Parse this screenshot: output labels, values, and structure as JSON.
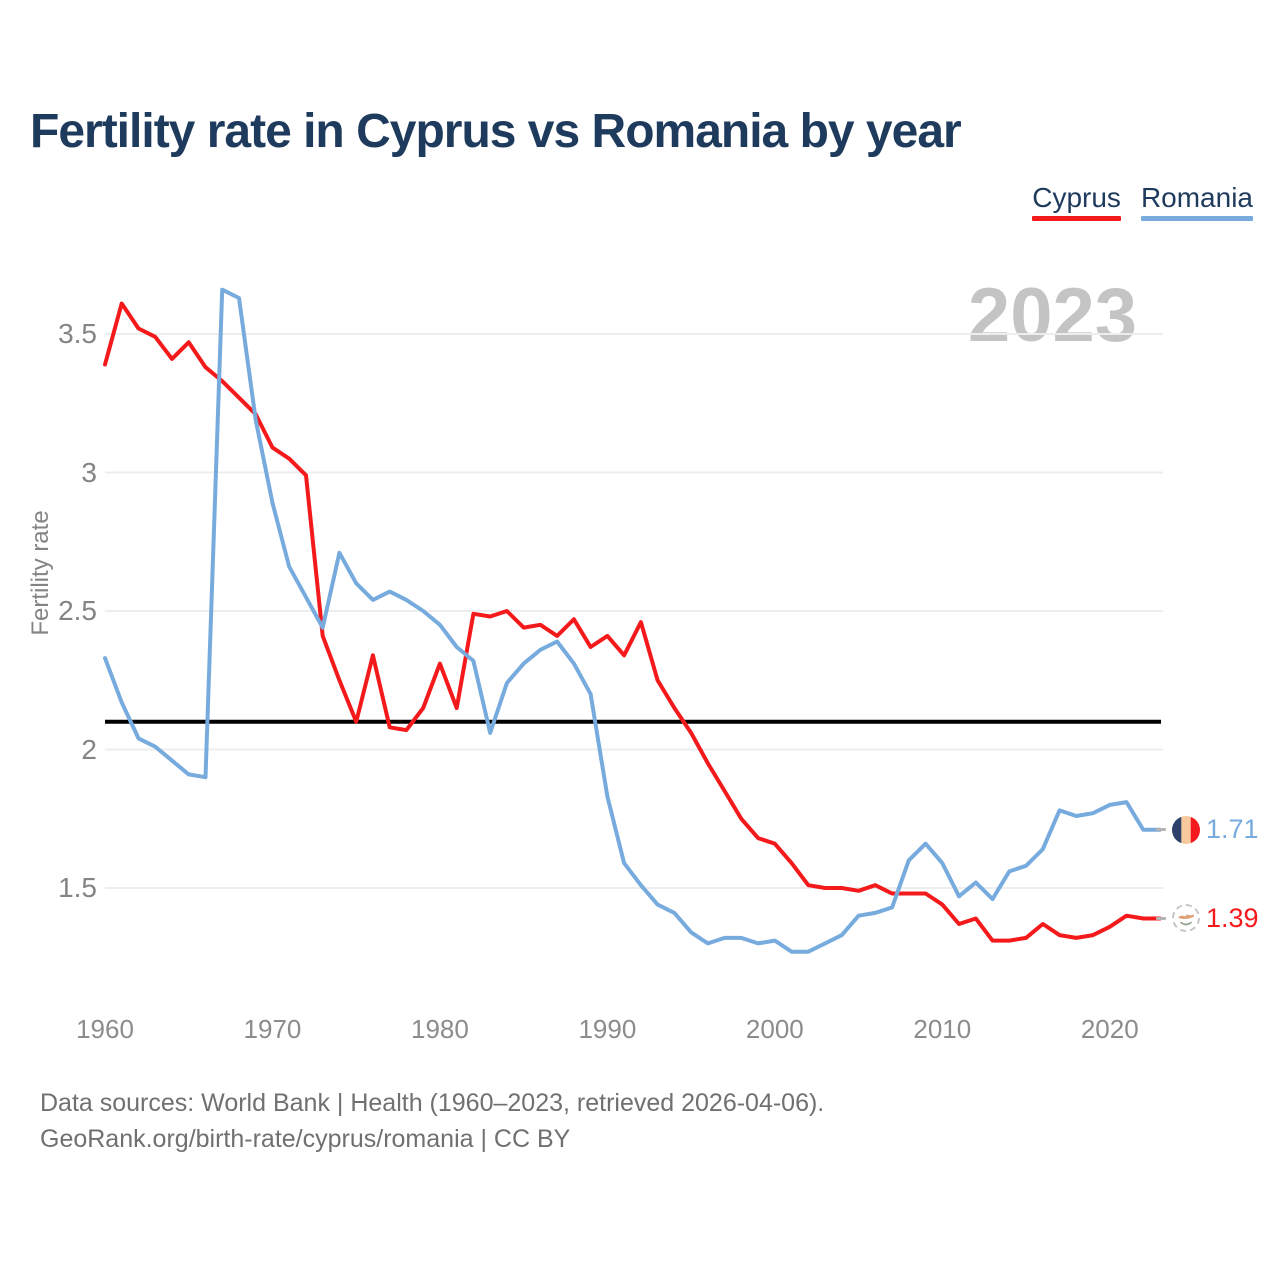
{
  "header": {
    "title": "Fertility rate in Cyprus vs Romania by year"
  },
  "legend": {
    "position": "top-right",
    "items": [
      {
        "label": "Cyprus",
        "color": "#f41a1c"
      },
      {
        "label": "Romania",
        "color": "#77abde"
      }
    ]
  },
  "chart_data": {
    "type": "line",
    "title": "Fertility rate in Cyprus vs Romania by year",
    "xlabel": "",
    "ylabel": "Fertility rate",
    "x_range": [
      1960,
      2023
    ],
    "ylim": [
      1.1,
      3.8
    ],
    "x_ticks": [
      1960,
      1970,
      1980,
      1990,
      2000,
      2010,
      2020
    ],
    "y_ticks": [
      "3.5",
      "3",
      "2.5",
      "2",
      "1.5"
    ],
    "grid": "horizontal",
    "year_watermark": "2023",
    "reference_line": {
      "value": 2.1,
      "color": "#000000"
    },
    "x": [
      1960,
      1961,
      1962,
      1963,
      1964,
      1965,
      1966,
      1967,
      1968,
      1969,
      1970,
      1971,
      1972,
      1973,
      1974,
      1975,
      1976,
      1977,
      1978,
      1979,
      1980,
      1981,
      1982,
      1983,
      1984,
      1985,
      1986,
      1987,
      1988,
      1989,
      1990,
      1991,
      1992,
      1993,
      1994,
      1995,
      1996,
      1997,
      1998,
      1999,
      2000,
      2001,
      2002,
      2003,
      2004,
      2005,
      2006,
      2007,
      2008,
      2009,
      2010,
      2011,
      2012,
      2013,
      2014,
      2015,
      2016,
      2017,
      2018,
      2019,
      2020,
      2021,
      2022,
      2023
    ],
    "series": [
      {
        "name": "Cyprus",
        "color": "#f41a1c",
        "values": [
          3.39,
          3.61,
          3.52,
          3.49,
          3.41,
          3.47,
          3.38,
          3.33,
          3.27,
          3.21,
          3.09,
          3.05,
          2.99,
          2.41,
          2.25,
          2.1,
          2.34,
          2.08,
          2.07,
          2.15,
          2.31,
          2.15,
          2.49,
          2.48,
          2.5,
          2.44,
          2.45,
          2.41,
          2.47,
          2.37,
          2.41,
          2.34,
          2.46,
          2.25,
          2.15,
          2.06,
          1.95,
          1.85,
          1.75,
          1.68,
          1.66,
          1.59,
          1.51,
          1.5,
          1.5,
          1.49,
          1.51,
          1.48,
          1.48,
          1.48,
          1.44,
          1.37,
          1.39,
          1.31,
          1.31,
          1.32,
          1.37,
          1.33,
          1.32,
          1.33,
          1.36,
          1.4,
          1.39,
          1.39
        ]
      },
      {
        "name": "Romania",
        "color": "#77abde",
        "values": [
          2.33,
          2.17,
          2.04,
          2.01,
          1.96,
          1.91,
          1.9,
          3.66,
          3.63,
          3.19,
          2.89,
          2.66,
          2.55,
          2.44,
          2.71,
          2.6,
          2.54,
          2.57,
          2.54,
          2.5,
          2.45,
          2.37,
          2.32,
          2.06,
          2.24,
          2.31,
          2.36,
          2.39,
          2.31,
          2.2,
          1.83,
          1.59,
          1.51,
          1.44,
          1.41,
          1.34,
          1.3,
          1.32,
          1.32,
          1.3,
          1.31,
          1.27,
          1.27,
          1.3,
          1.33,
          1.4,
          1.41,
          1.43,
          1.6,
          1.66,
          1.59,
          1.47,
          1.52,
          1.46,
          1.56,
          1.58,
          1.64,
          1.78,
          1.76,
          1.77,
          1.8,
          1.81,
          1.71,
          1.71
        ]
      }
    ],
    "end_labels": {
      "romania": {
        "series": "Romania",
        "value": "1.71",
        "icon": "romania-flag-icon",
        "color": "#77abde"
      },
      "cyprus": {
        "series": "Cyprus",
        "value": "1.39",
        "icon": "cyprus-flag-icon",
        "color": "#f41a1c"
      }
    }
  },
  "footer": {
    "line1": "Data sources: World Bank | Health (1960–2023, retrieved 2026-04-06).",
    "line2": "GeoRank.org/birth-rate/cyprus/romania | CC BY"
  }
}
